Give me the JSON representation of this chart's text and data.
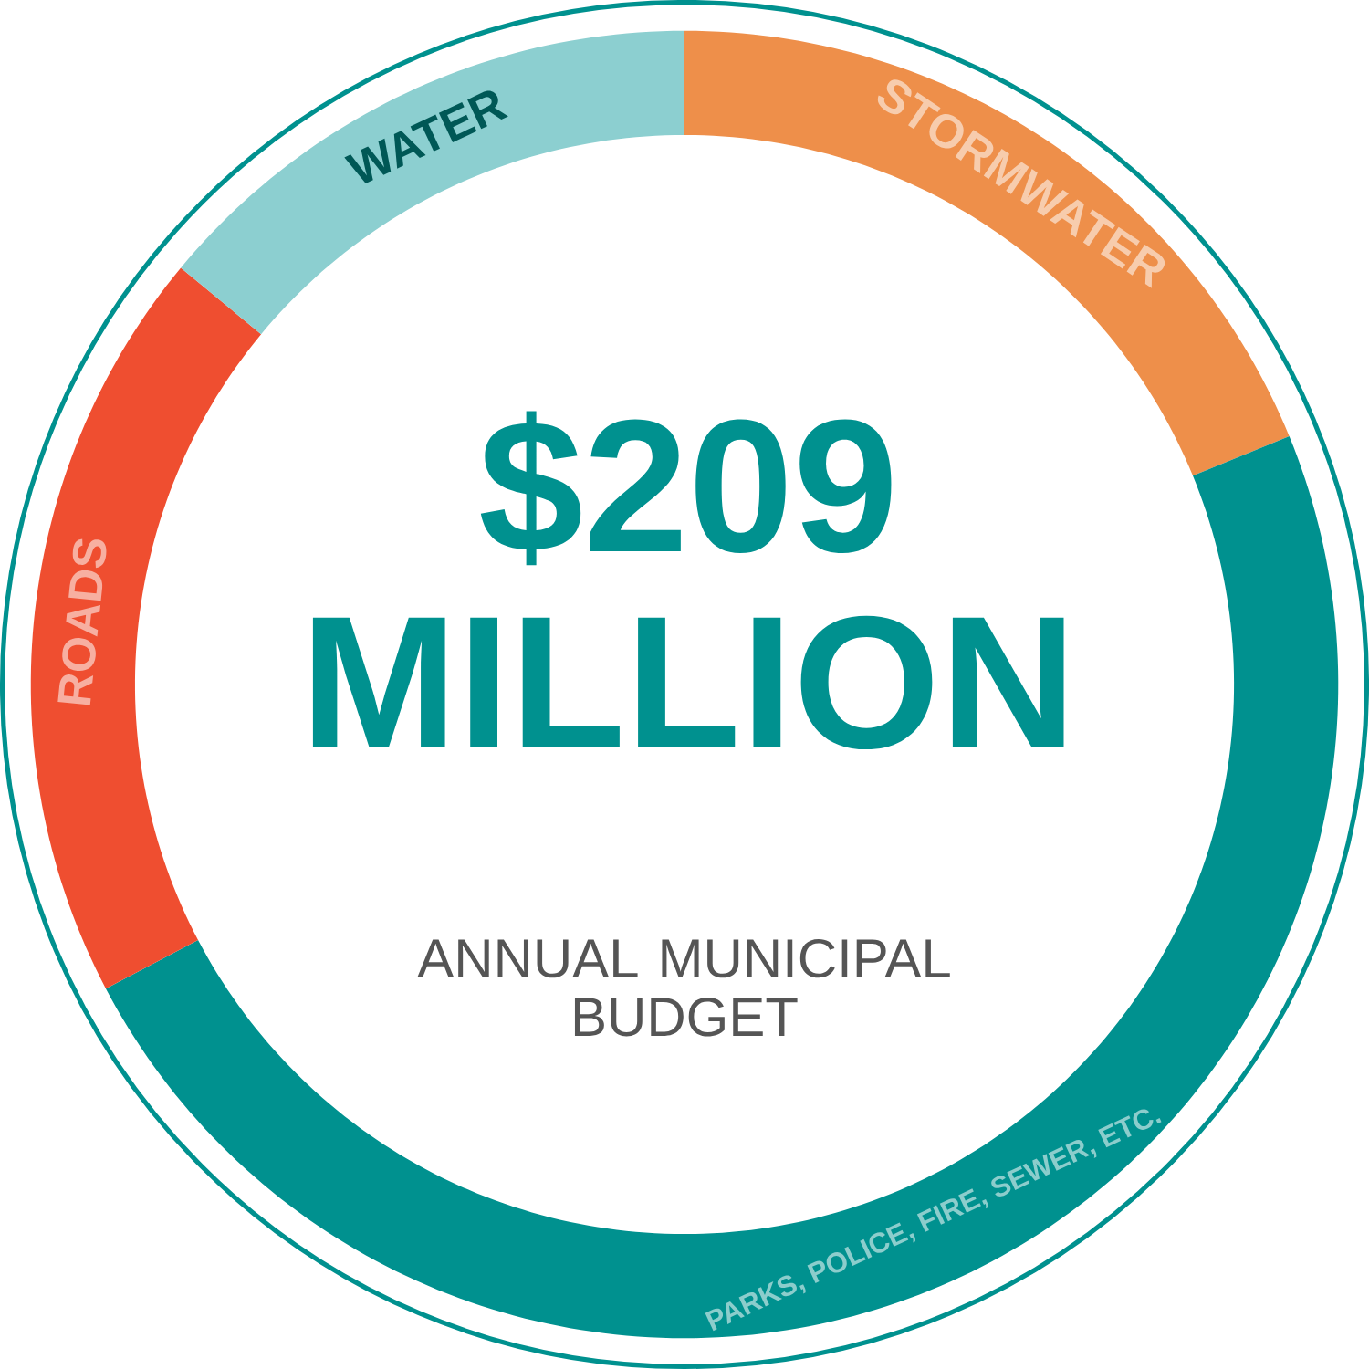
{
  "chart_data": {
    "type": "donut",
    "title": "$209 MILLION",
    "annotations": [
      "ANNUAL MUNICIPAL BUDGET"
    ],
    "categories": [
      "STORMWATER",
      "PARKS, POLICE, FIRE, SEWER, ETC.",
      "ROADS",
      "WATER"
    ],
    "values": [
      18.8,
      48.5,
      18.7,
      14.0
    ],
    "colors": [
      "#ee8f4a",
      "#00918f",
      "#ef4e30",
      "#8ccfd0"
    ]
  }
}
